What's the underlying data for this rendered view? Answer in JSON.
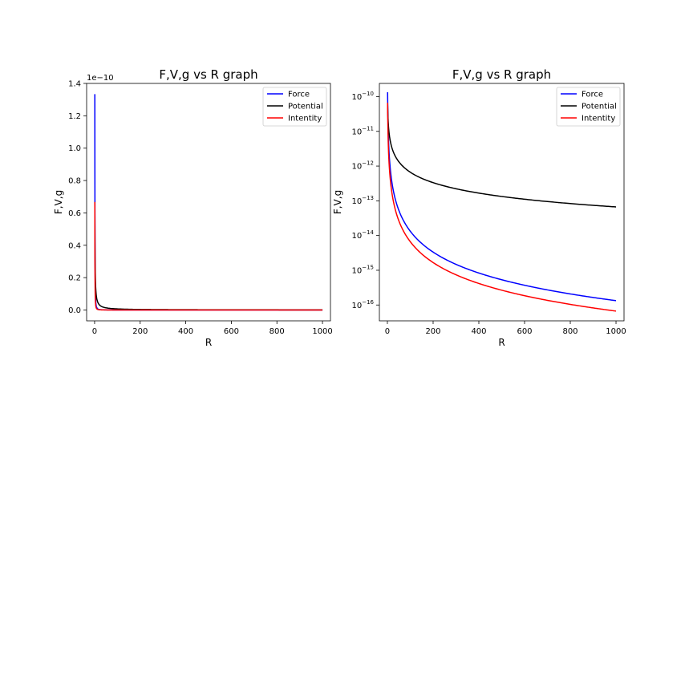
{
  "chart_data": [
    {
      "type": "line",
      "title": "F,V,g vs R graph",
      "xlabel": "R",
      "ylabel": "F,V,g",
      "yscale": "linear",
      "offset_label": "1e−10",
      "xlim": [
        -35,
        1035
      ],
      "ylim": [
        -0.067,
        1.4
      ],
      "xticks": [
        0,
        200,
        400,
        600,
        800,
        1000
      ],
      "xtick_labels": [
        "0",
        "200",
        "400",
        "600",
        "800",
        "1000"
      ],
      "yticks": [
        0.0,
        0.2,
        0.4,
        0.6,
        0.8,
        1.0,
        1.2,
        1.4
      ],
      "ytick_labels": [
        "0.0",
        "0.2",
        "0.4",
        "0.6",
        "0.8",
        "1.0",
        "1.2",
        "1.4"
      ],
      "legend_position": "top-right",
      "grid": false,
      "x": [
        1,
        2,
        3,
        5,
        10,
        20,
        50,
        100,
        200,
        400,
        600,
        800,
        1000
      ],
      "series": [
        {
          "name": "Force",
          "color": "#0000ff",
          "values": [
            1.334,
            0.3335,
            0.1482,
            0.05336,
            0.01334,
            0.003335,
            0.0005336,
            0.0001334,
            3.335e-05,
            8.3e-06,
            3.7e-06,
            2.1e-06,
            1.3e-06
          ]
        },
        {
          "name": "Potential",
          "color": "#000000",
          "values": [
            0.667,
            0.3335,
            0.2223,
            0.1334,
            0.0667,
            0.03335,
            0.01334,
            0.00667,
            0.003335,
            0.00167,
            0.00111,
            0.00083,
            0.000667
          ]
        },
        {
          "name": "Intentity",
          "color": "#ff0000",
          "values": [
            0.667,
            0.16675,
            0.0741,
            0.02668,
            0.00667,
            0.00167,
            0.000267,
            6.67e-05,
            1.67e-05,
            4.2e-06,
            1.9e-06,
            1e-06,
            6.7e-07
          ]
        }
      ]
    },
    {
      "type": "line",
      "title": "F,V,g vs R graph",
      "xlabel": "R",
      "ylabel": "F,V,g",
      "yscale": "log",
      "xlim": [
        -35,
        1035
      ],
      "ylim": [
        3.5e-17,
        2.4e-10
      ],
      "xticks": [
        0,
        200,
        400,
        600,
        800,
        1000
      ],
      "xtick_labels": [
        "0",
        "200",
        "400",
        "600",
        "800",
        "1000"
      ],
      "yticks": [
        1e-16,
        1e-15,
        1e-14,
        1e-13,
        1e-12,
        1e-11,
        1e-10
      ],
      "ytick_exponents": [
        "−16",
        "−15",
        "−14",
        "−13",
        "−12",
        "−11",
        "−10"
      ],
      "legend_position": "top-right",
      "grid": false,
      "x": [
        1,
        2,
        3,
        5,
        10,
        20,
        50,
        100,
        200,
        400,
        600,
        800,
        1000
      ],
      "series": [
        {
          "name": "Force",
          "color": "#0000ff",
          "values": [
            1.334e-10,
            3.335e-11,
            1.482e-11,
            5.336e-12,
            1.334e-12,
            3.335e-13,
            5.336e-14,
            1.334e-14,
            3.335e-15,
            8.34e-16,
            3.71e-16,
            2.08e-16,
            1.334e-16
          ]
        },
        {
          "name": "Potential",
          "color": "#000000",
          "values": [
            6.67e-11,
            3.335e-11,
            2.223e-11,
            1.334e-11,
            6.67e-12,
            3.335e-12,
            1.334e-12,
            6.67e-13,
            3.335e-13,
            1.668e-13,
            1.112e-13,
            8.34e-14,
            6.67e-14
          ]
        },
        {
          "name": "Intentity",
          "color": "#ff0000",
          "values": [
            6.67e-11,
            1.668e-11,
            7.41e-12,
            2.668e-12,
            6.67e-13,
            1.668e-13,
            2.668e-14,
            6.67e-15,
            1.668e-15,
            4.17e-16,
            1.853e-16,
            1.042e-16,
            6.67e-17
          ]
        }
      ]
    }
  ]
}
